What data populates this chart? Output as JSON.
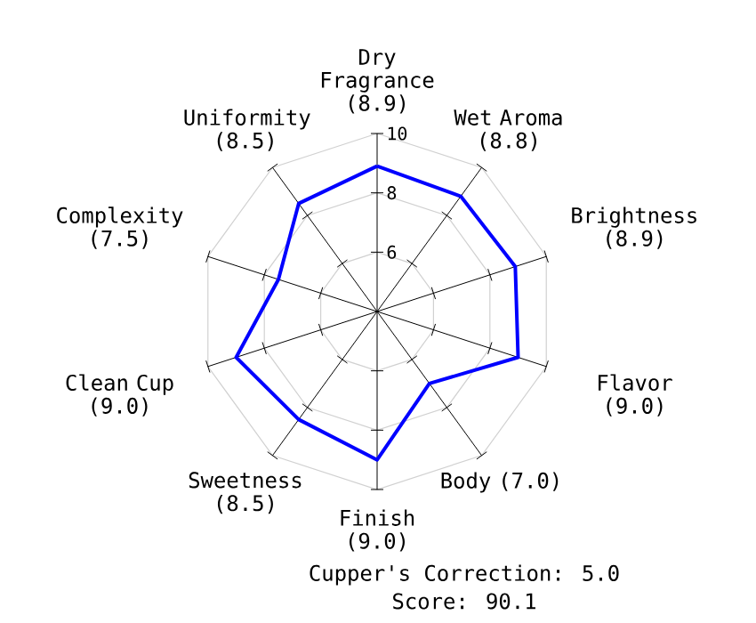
{
  "chart_data": {
    "type": "radar",
    "categories": [
      "Dry Fragrance (8.9)",
      "Wet Aroma (8.8)",
      "Brightness (8.9)",
      "Flavor (9.0)",
      "Body (7.0)",
      "Finish (9.0)",
      "Sweetness (8.5)",
      "Clean Cup (9.0)",
      "Complexity (7.5)",
      "Uniformity (8.5)"
    ],
    "series": [
      {
        "color": "#0000ff",
        "values": [
          8.9,
          8.8,
          8.9,
          9.0,
          7.0,
          9.0,
          8.5,
          9.0,
          7.5,
          8.5
        ]
      }
    ],
    "ylim": [
      4,
      10
    ],
    "yticks": [
      6,
      8,
      10
    ],
    "grid": true,
    "annotations": [
      "Cupper's Correction: 5.0",
      "Score: 90.1"
    ]
  }
}
